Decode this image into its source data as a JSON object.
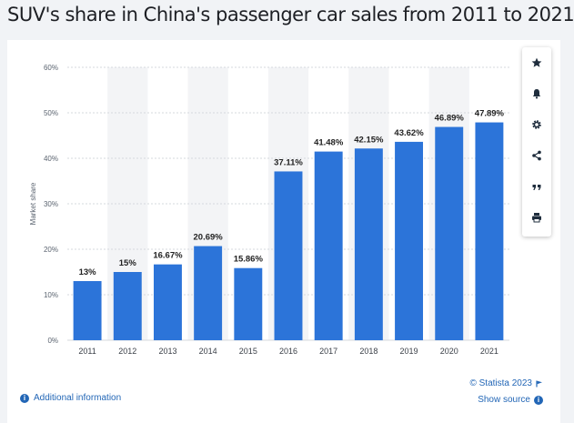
{
  "title": "SUV's share in China's passenger car sales from 2011 to 2021",
  "colors": {
    "bar": "#2c74d9",
    "band": "#f3f4f6",
    "accent": "#2266b6",
    "toolbar_icon": "#1f2d3d"
  },
  "toolbar": {
    "items": [
      {
        "name": "favorite-button",
        "icon": "star-icon"
      },
      {
        "name": "notification-button",
        "icon": "bell-icon"
      },
      {
        "name": "settings-button",
        "icon": "gear-icon"
      },
      {
        "name": "share-button",
        "icon": "share-icon"
      },
      {
        "name": "cite-button",
        "icon": "quote-icon"
      },
      {
        "name": "print-button",
        "icon": "print-icon"
      }
    ]
  },
  "footer": {
    "additional_info": "Additional information",
    "copyright": "© Statista 2023",
    "show_source": "Show source"
  },
  "chart_data": {
    "type": "bar",
    "title": "",
    "xlabel": "",
    "ylabel": "Market share",
    "categories": [
      "2011",
      "2012",
      "2013",
      "2014",
      "2015",
      "2016",
      "2017",
      "2018",
      "2019",
      "2020",
      "2021"
    ],
    "values": [
      13,
      15,
      16.67,
      20.69,
      15.86,
      37.11,
      41.48,
      42.15,
      43.62,
      46.89,
      47.89
    ],
    "data_labels": [
      "13%",
      "15%",
      "16.67%",
      "20.69%",
      "15.86%",
      "37.11%",
      "41.48%",
      "42.15%",
      "43.62%",
      "46.89%",
      "47.89%"
    ],
    "ylim": [
      0,
      60
    ],
    "yticks": [
      0,
      10,
      20,
      30,
      40,
      50,
      60
    ],
    "ytick_labels": [
      "0%",
      "10%",
      "20%",
      "30%",
      "40%",
      "50%",
      "60%"
    ],
    "grid": true,
    "legend": "none"
  }
}
